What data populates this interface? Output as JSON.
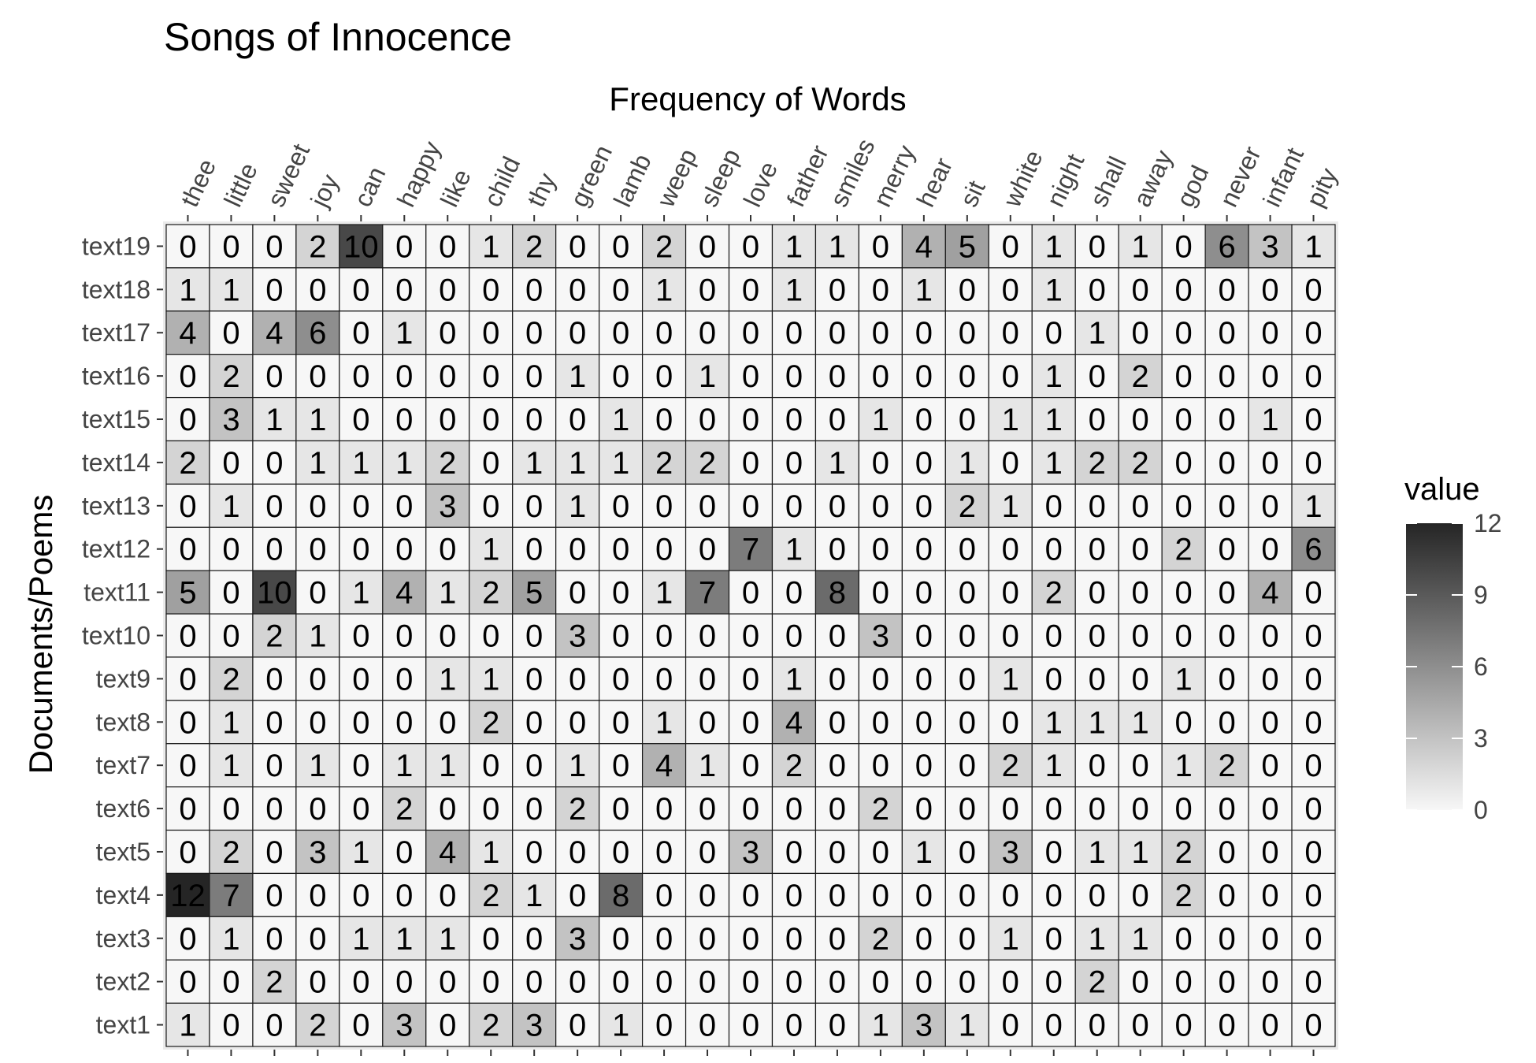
{
  "chart_data": {
    "type": "heatmap",
    "title": "Songs of Innocence",
    "xlabel": "Frequency of Words",
    "ylabel": "Documents/Poems",
    "x_position": "top",
    "x": [
      "thee",
      "little",
      "sweet",
      "joy",
      "can",
      "happy",
      "like",
      "child",
      "thy",
      "green",
      "lamb",
      "weep",
      "sleep",
      "love",
      "father",
      "smiles",
      "merry",
      "hear",
      "sit",
      "white",
      "night",
      "shall",
      "away",
      "god",
      "never",
      "infant",
      "pity"
    ],
    "y": [
      "text19",
      "text18",
      "text17",
      "text16",
      "text15",
      "text14",
      "text13",
      "text12",
      "text11",
      "text10",
      "text9",
      "text8",
      "text7",
      "text6",
      "text5",
      "text4",
      "text3",
      "text2",
      "text1"
    ],
    "values": [
      [
        0,
        0,
        0,
        2,
        10,
        0,
        0,
        1,
        2,
        0,
        0,
        2,
        0,
        0,
        1,
        1,
        0,
        4,
        5,
        0,
        1,
        0,
        1,
        0,
        6,
        3,
        1
      ],
      [
        1,
        1,
        0,
        0,
        0,
        0,
        0,
        0,
        0,
        0,
        0,
        1,
        0,
        0,
        1,
        0,
        0,
        1,
        0,
        0,
        1,
        0,
        0,
        0,
        0,
        0,
        0
      ],
      [
        4,
        0,
        4,
        6,
        0,
        1,
        0,
        0,
        0,
        0,
        0,
        0,
        0,
        0,
        0,
        0,
        0,
        0,
        0,
        0,
        0,
        1,
        0,
        0,
        0,
        0,
        0
      ],
      [
        0,
        2,
        0,
        0,
        0,
        0,
        0,
        0,
        0,
        1,
        0,
        0,
        1,
        0,
        0,
        0,
        0,
        0,
        0,
        0,
        1,
        0,
        2,
        0,
        0,
        0,
        0
      ],
      [
        0,
        3,
        1,
        1,
        0,
        0,
        0,
        0,
        0,
        0,
        1,
        0,
        0,
        0,
        0,
        0,
        1,
        0,
        0,
        1,
        1,
        0,
        0,
        0,
        0,
        1,
        0
      ],
      [
        2,
        0,
        0,
        1,
        1,
        1,
        2,
        0,
        1,
        1,
        1,
        2,
        2,
        0,
        0,
        1,
        0,
        0,
        1,
        0,
        1,
        2,
        2,
        0,
        0,
        0,
        0
      ],
      [
        0,
        1,
        0,
        0,
        0,
        0,
        3,
        0,
        0,
        1,
        0,
        0,
        0,
        0,
        0,
        0,
        0,
        0,
        2,
        1,
        0,
        0,
        0,
        0,
        0,
        0,
        1
      ],
      [
        0,
        0,
        0,
        0,
        0,
        0,
        0,
        1,
        0,
        0,
        0,
        0,
        0,
        7,
        1,
        0,
        0,
        0,
        0,
        0,
        0,
        0,
        0,
        2,
        0,
        0,
        6
      ],
      [
        5,
        0,
        10,
        0,
        1,
        4,
        1,
        2,
        5,
        0,
        0,
        1,
        7,
        0,
        0,
        8,
        0,
        0,
        0,
        0,
        2,
        0,
        0,
        0,
        0,
        4,
        0
      ],
      [
        0,
        0,
        2,
        1,
        0,
        0,
        0,
        0,
        0,
        3,
        0,
        0,
        0,
        0,
        0,
        0,
        3,
        0,
        0,
        0,
        0,
        0,
        0,
        0,
        0,
        0,
        0
      ],
      [
        0,
        2,
        0,
        0,
        0,
        0,
        1,
        1,
        0,
        0,
        0,
        0,
        0,
        0,
        1,
        0,
        0,
        0,
        0,
        1,
        0,
        0,
        0,
        1,
        0,
        0,
        0
      ],
      [
        0,
        1,
        0,
        0,
        0,
        0,
        0,
        2,
        0,
        0,
        0,
        1,
        0,
        0,
        4,
        0,
        0,
        0,
        0,
        0,
        1,
        1,
        1,
        0,
        0,
        0,
        0
      ],
      [
        0,
        1,
        0,
        1,
        0,
        1,
        1,
        0,
        0,
        1,
        0,
        4,
        1,
        0,
        2,
        0,
        0,
        0,
        0,
        2,
        1,
        0,
        0,
        1,
        2,
        0,
        0
      ],
      [
        0,
        0,
        0,
        0,
        0,
        2,
        0,
        0,
        0,
        2,
        0,
        0,
        0,
        0,
        0,
        0,
        2,
        0,
        0,
        0,
        0,
        0,
        0,
        0,
        0,
        0,
        0
      ],
      [
        0,
        2,
        0,
        3,
        1,
        0,
        4,
        1,
        0,
        0,
        0,
        0,
        0,
        3,
        0,
        0,
        0,
        1,
        0,
        3,
        0,
        1,
        1,
        2,
        0,
        0,
        0
      ],
      [
        12,
        7,
        0,
        0,
        0,
        0,
        0,
        2,
        1,
        0,
        8,
        0,
        0,
        0,
        0,
        0,
        0,
        0,
        0,
        0,
        0,
        0,
        0,
        2,
        0,
        0,
        0
      ],
      [
        0,
        1,
        0,
        0,
        1,
        1,
        1,
        0,
        0,
        3,
        0,
        0,
        0,
        0,
        0,
        0,
        2,
        0,
        0,
        1,
        0,
        1,
        1,
        0,
        0,
        0,
        0
      ],
      [
        0,
        0,
        2,
        0,
        0,
        0,
        0,
        0,
        0,
        0,
        0,
        0,
        0,
        0,
        0,
        0,
        0,
        0,
        0,
        0,
        0,
        2,
        0,
        0,
        0,
        0,
        0
      ],
      [
        1,
        0,
        0,
        2,
        0,
        3,
        0,
        2,
        3,
        0,
        1,
        0,
        0,
        0,
        0,
        0,
        1,
        3,
        1,
        0,
        0,
        0,
        0,
        0,
        0,
        0,
        0
      ]
    ],
    "legend": {
      "title": "value",
      "ticks": [
        12,
        9,
        6,
        3,
        0
      ],
      "range": [
        0,
        12
      ],
      "low_color": "#f7f7f7",
      "high_color": "#252525"
    },
    "legend_position": "right"
  }
}
